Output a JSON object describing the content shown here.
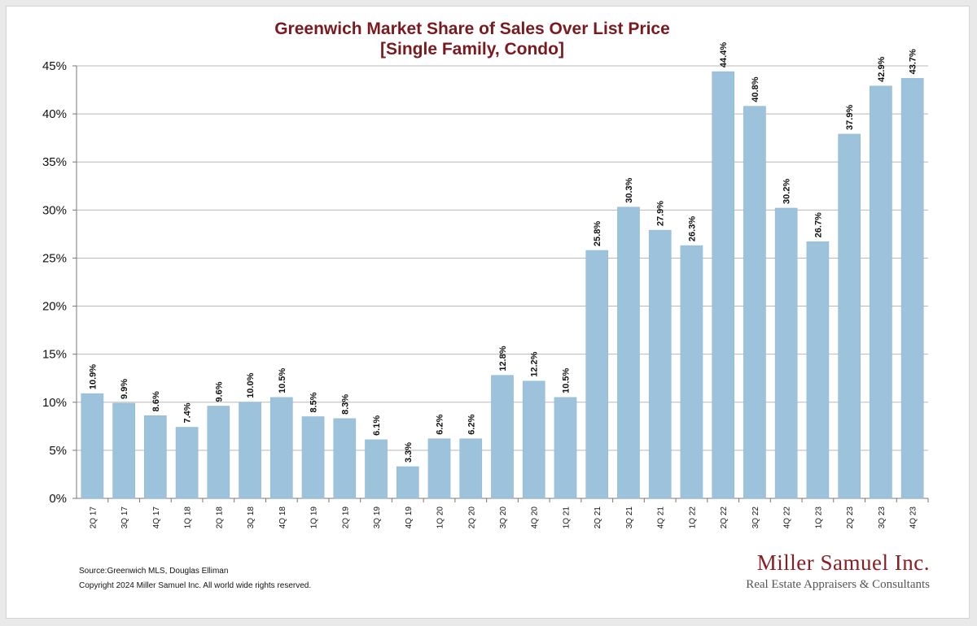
{
  "title_line1": "Greenwich Market Share of Sales Over List Price",
  "title_line2": "[Single Family, Condo]",
  "source": "Source:Greenwich MLS, Douglas Elliman",
  "copyright": "Copyright 2024 Miller Samuel Inc.  All world wide rights reserved.",
  "brand": {
    "name": "Miller Samuel Inc.",
    "tagline": "Real Estate Appraisers & Consultants"
  },
  "colors": {
    "bar": "#9dc3dc",
    "bar_edge": "#8ab4cf",
    "title": "#7a1a1f",
    "grid": "#b8b8b8",
    "brand": "#8a1e22"
  },
  "chart_data": {
    "type": "bar",
    "title": "Greenwich Market Share of Sales Over List Price [Single Family, Condo]",
    "xlabel": "",
    "ylabel": "",
    "ylim": [
      0,
      45
    ],
    "yticks": [
      0,
      5,
      10,
      15,
      20,
      25,
      30,
      35,
      40,
      45
    ],
    "ytick_labels": [
      "0%",
      "5%",
      "10%",
      "15%",
      "20%",
      "25%",
      "30%",
      "35%",
      "40%",
      "45%"
    ],
    "grid": true,
    "categories": [
      "2Q 17",
      "3Q 17",
      "4Q 17",
      "1Q 18",
      "2Q 18",
      "3Q 18",
      "4Q 18",
      "1Q 19",
      "2Q 19",
      "3Q 19",
      "4Q 19",
      "1Q 20",
      "2Q 20",
      "3Q 20",
      "4Q 20",
      "1Q 21",
      "2Q 21",
      "3Q 21",
      "4Q 21",
      "1Q 22",
      "2Q 22",
      "3Q 22",
      "4Q 22",
      "1Q 23",
      "2Q 23",
      "3Q 23",
      "4Q 23"
    ],
    "values": [
      10.9,
      9.9,
      8.6,
      7.4,
      9.6,
      10.0,
      10.5,
      8.5,
      8.3,
      6.1,
      3.3,
      6.2,
      6.2,
      12.8,
      12.2,
      10.5,
      25.8,
      30.3,
      27.9,
      26.3,
      44.4,
      40.8,
      30.2,
      26.7,
      37.9,
      42.9,
      43.7
    ],
    "data_labels": [
      "10.9%",
      "9.9%",
      "8.6%",
      "7.4%",
      "9.6%",
      "10.0%",
      "10.5%",
      "8.5%",
      "8.3%",
      "6.1%",
      "3.3%",
      "6.2%",
      "6.2%",
      "12.8%",
      "12.2%",
      "10.5%",
      "25.8%",
      "30.3%",
      "27.9%",
      "26.3%",
      "44.4%",
      "40.8%",
      "30.2%",
      "26.7%",
      "37.9%",
      "42.9%",
      "43.7%"
    ]
  }
}
